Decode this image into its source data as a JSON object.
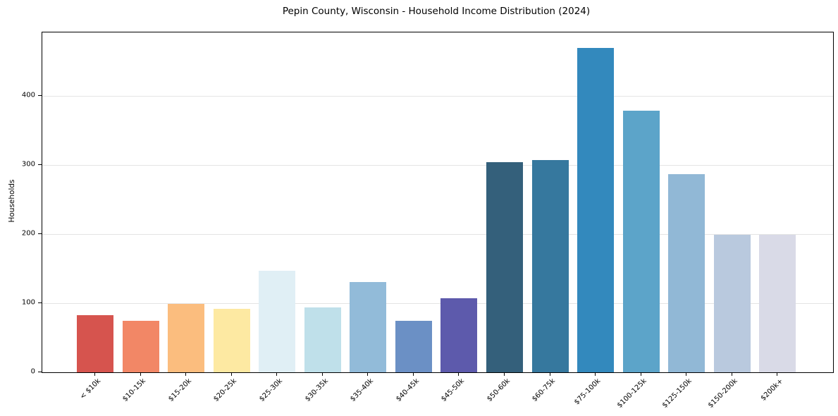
{
  "figure": {
    "title": "Pepin County, Wisconsin - Household Income Distribution (2024)",
    "ylabel": "Households"
  },
  "chart_data": {
    "type": "bar",
    "title": "Pepin County, Wisconsin - Household Income Distribution (2024)",
    "xlabel": "",
    "ylabel": "Households",
    "categories": [
      "< $10k",
      "$10-15k",
      "$15-20k",
      "$20-25k",
      "$25-30k",
      "$30-35k",
      "$35-40k",
      "$40-45k",
      "$45-50k",
      "$50-60k",
      "$60-75k",
      "$75-100k",
      "$100-125k",
      "$125-150k",
      "$150-200k",
      "$200k+"
    ],
    "values": [
      82,
      74,
      99,
      91,
      147,
      93,
      130,
      74,
      107,
      304,
      307,
      469,
      378,
      286,
      199,
      199
    ],
    "bar_colors": [
      "#d6544e",
      "#f28766",
      "#fbbd7e",
      "#fde9a2",
      "#e0eff5",
      "#bfe0ea",
      "#92bbd9",
      "#6b90c5",
      "#5d5aac",
      "#34607b",
      "#36789e",
      "#3389bd",
      "#5ca4c9",
      "#91b8d6",
      "#b9c9de",
      "#d9dae7"
    ],
    "ylim": [
      0,
      492
    ],
    "yticks": [
      0,
      100,
      200,
      300,
      400
    ],
    "grid": true,
    "legend": false,
    "colors": {
      "background": "#ffffff",
      "gridline": "#e4e4e4",
      "spine": "#000000",
      "text": "#000000"
    }
  }
}
